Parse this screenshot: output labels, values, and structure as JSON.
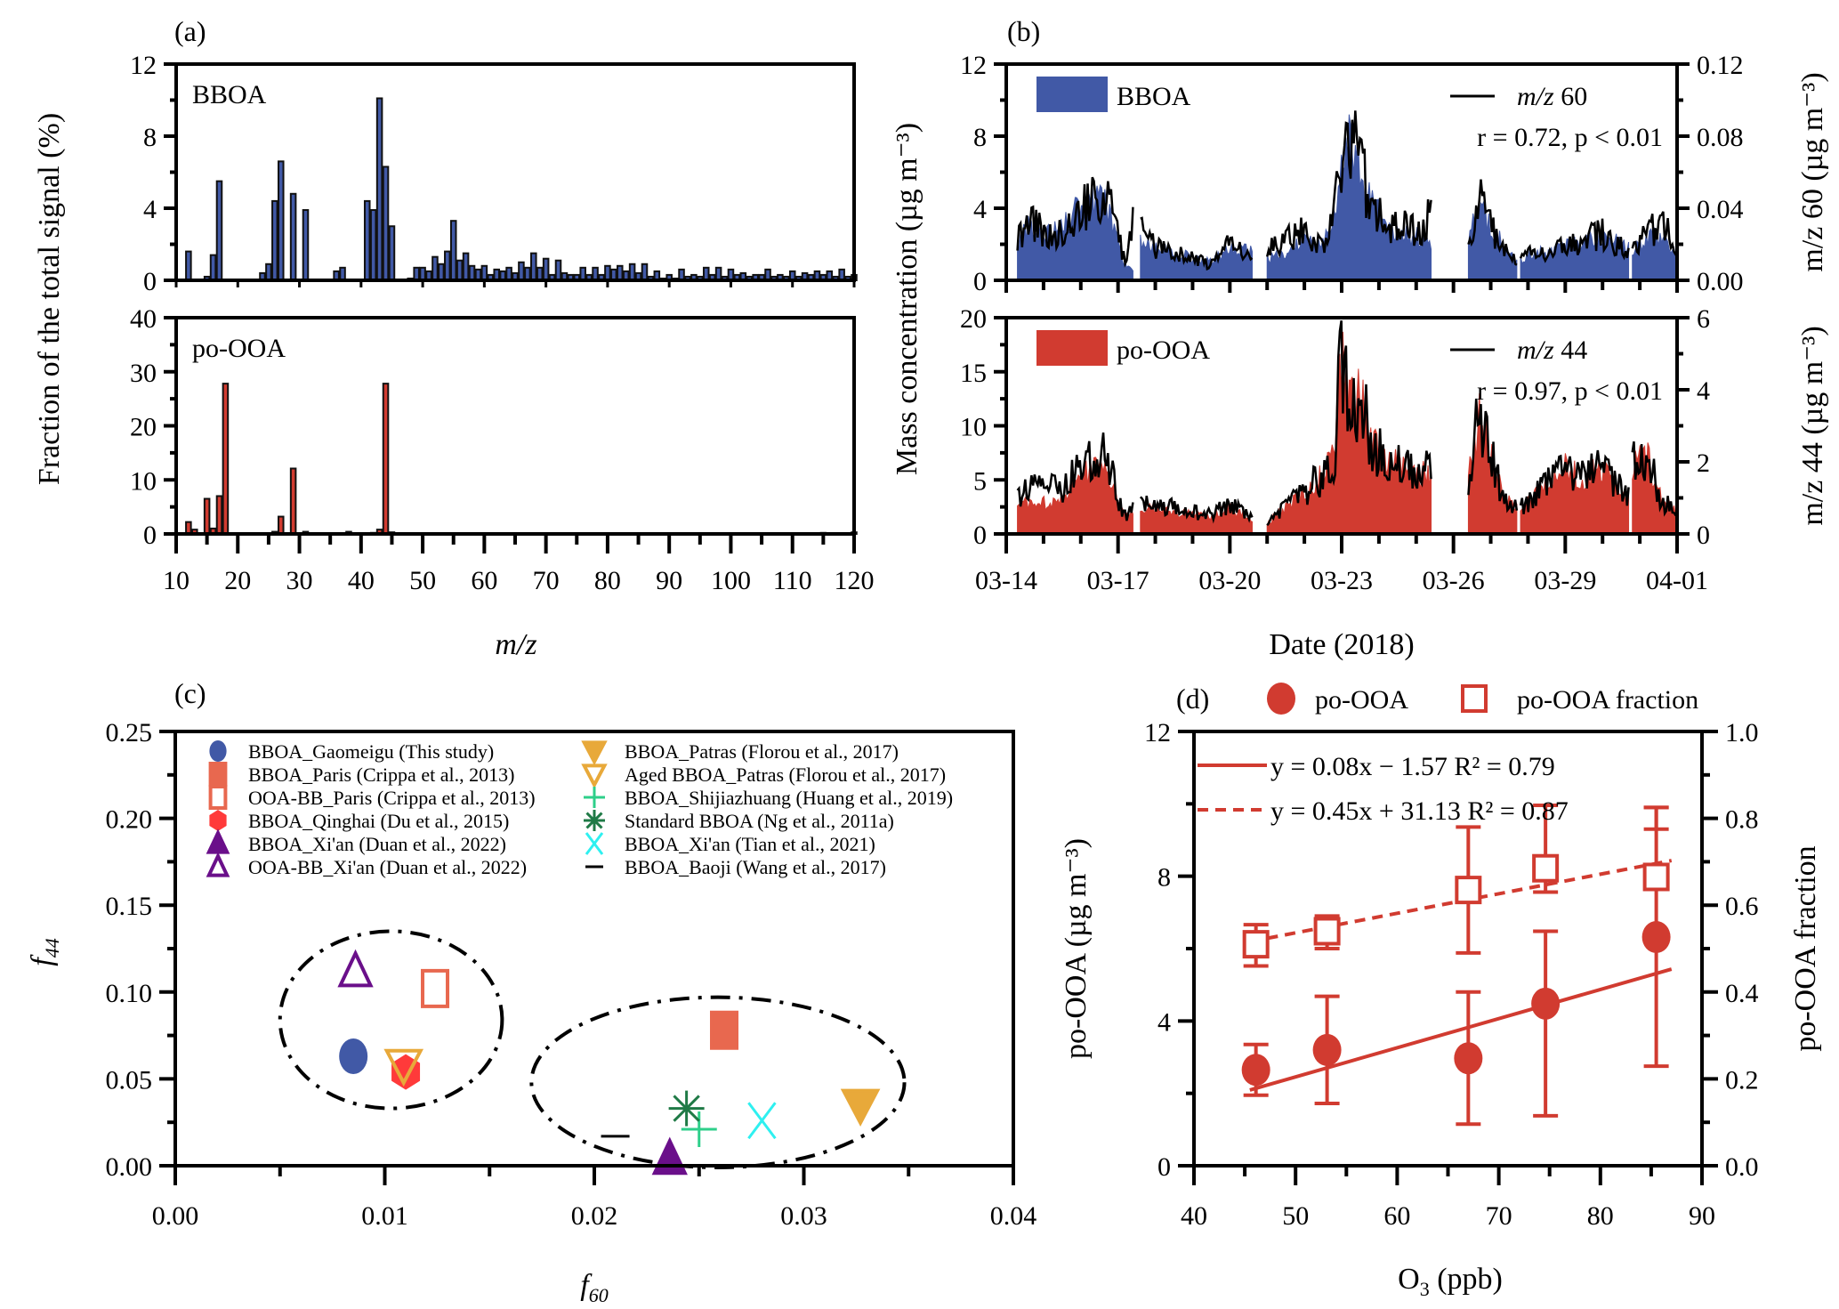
{
  "chart_data": [
    {
      "id": "a",
      "panel_label": "(a)",
      "type": "bar",
      "ylabel": "Fraction of the total signal (%)",
      "xlabel": "m/z",
      "xlim": [
        10,
        120
      ],
      "xticks": [
        10,
        20,
        30,
        40,
        50,
        60,
        70,
        80,
        90,
        100,
        110,
        120
      ],
      "subplots": [
        {
          "name": "BBOA",
          "color": "#4159a6",
          "ylim": [
            0,
            12
          ],
          "yticks": [
            0,
            4,
            8,
            12
          ],
          "mz": [
            12,
            13,
            14,
            15,
            16,
            17,
            18,
            19,
            20,
            24,
            25,
            26,
            27,
            28,
            29,
            30,
            31,
            36,
            37,
            38,
            39,
            41,
            42,
            43,
            44,
            45,
            46,
            47,
            48,
            49,
            50,
            51,
            52,
            53,
            54,
            55,
            56,
            57,
            58,
            59,
            60,
            61,
            62,
            63,
            64,
            65,
            66,
            67,
            68,
            69,
            70,
            71,
            72,
            73,
            74,
            75,
            76,
            77,
            78,
            79,
            80,
            81,
            82,
            83,
            84,
            85,
            86,
            87,
            88,
            89,
            90,
            91,
            92,
            93,
            94,
            95,
            96,
            97,
            98,
            99,
            100,
            101,
            102,
            103,
            104,
            105,
            106,
            107,
            108,
            109,
            110,
            111,
            112,
            113,
            114,
            115,
            116,
            117,
            118,
            119,
            120
          ],
          "values": [
            1.6,
            0,
            0,
            0.2,
            1.4,
            5.5,
            0,
            0,
            0,
            0.4,
            0.9,
            4.4,
            6.6,
            0,
            4.8,
            0,
            3.9,
            0.5,
            0.7,
            0,
            0,
            4.4,
            3.9,
            10.1,
            6.3,
            3.0,
            0,
            0.05,
            0.1,
            0.7,
            0.7,
            0.5,
            1.3,
            0.9,
            1.6,
            3.3,
            1.1,
            1.5,
            0.8,
            0.6,
            0.8,
            0.3,
            0.6,
            0.5,
            0.7,
            0.4,
            1.0,
            0.7,
            1.5,
            0.7,
            1.2,
            0.3,
            1.1,
            0.4,
            0.3,
            0.3,
            0.7,
            0.3,
            0.7,
            0.3,
            0.8,
            0.6,
            0.8,
            0.5,
            0.9,
            0.4,
            0.9,
            0.2,
            0.5,
            0.1,
            0.3,
            0.1,
            0.6,
            0.2,
            0.3,
            0.2,
            0.7,
            0.3,
            0.7,
            0.2,
            0.6,
            0.3,
            0.4,
            0.2,
            0.3,
            0.3,
            0.6,
            0.2,
            0.3,
            0.2,
            0.5,
            0.2,
            0.4,
            0.3,
            0.5,
            0.3,
            0.5,
            0.2,
            0.6,
            0.2,
            0.3
          ]
        },
        {
          "name": "po-OOA",
          "color": "#d13b30",
          "ylim": [
            0,
            40
          ],
          "yticks": [
            0,
            10,
            20,
            30,
            40
          ],
          "mz": [
            12,
            13,
            14,
            15,
            16,
            17,
            18,
            26,
            27,
            28,
            29,
            30,
            31,
            37,
            38,
            41,
            42,
            43,
            44,
            45,
            50,
            104,
            115,
            120
          ],
          "values": [
            2.2,
            0.8,
            0,
            6.5,
            1.0,
            7.0,
            27.8,
            0.4,
            3.2,
            0.1,
            12.1,
            0.1,
            0.4,
            0.1,
            0.4,
            0.1,
            0.2,
            0.8,
            27.8,
            0.3,
            0.1,
            0.1,
            0.2,
            0.3
          ]
        }
      ]
    },
    {
      "id": "b",
      "panel_label": "(b)",
      "type": "area",
      "ylabel": "Mass concentration (µg m⁻³)",
      "xlabel": "Date (2018)",
      "xlim_days": [
        0,
        18
      ],
      "xtick_labels": [
        "03-14",
        "03-17",
        "03-20",
        "03-23",
        "03-26",
        "03-29",
        "04-01"
      ],
      "xtick_days": [
        0,
        3,
        6,
        9,
        12,
        15,
        18
      ],
      "segments_days": [
        [
          0.3,
          3.4
        ],
        [
          3.6,
          6.6
        ],
        [
          7.0,
          11.4
        ],
        [
          12.4,
          13.7
        ],
        [
          13.8,
          16.7
        ],
        [
          16.8,
          18.0
        ]
      ],
      "subplots": [
        {
          "name": "BBOA",
          "area_color": "#4159a6",
          "line_label": "m/z 60",
          "annotation": "r = 0.72, p < 0.01",
          "ylim_left": [
            0,
            12
          ],
          "yticks_left": [
            0,
            4,
            8,
            12
          ],
          "ylim_right": [
            0,
            0.12
          ],
          "yticks_right": [
            "0.00",
            "0.04",
            "0.08",
            "0.12"
          ],
          "right_label": "m/z 60 (µg m⁻³)",
          "profile_days": [
            0.3,
            0.6,
            1.0,
            1.5,
            2.0,
            2.4,
            2.8,
            3.0,
            3.2,
            3.4,
            3.6,
            4.0,
            4.5,
            5.0,
            5.5,
            6.0,
            6.6,
            7.0,
            7.5,
            8.0,
            8.5,
            8.8,
            9.0,
            9.2,
            9.5,
            9.8,
            10.2,
            10.6,
            11.0,
            11.4,
            12.4,
            12.7,
            13.0,
            13.3,
            13.7,
            13.8,
            14.2,
            14.6,
            15.0,
            15.5,
            16.0,
            16.7,
            16.8,
            17.2,
            17.6,
            18.0
          ],
          "area_values": [
            2.0,
            3.0,
            2.6,
            2.8,
            4.2,
            4.6,
            3.8,
            2.2,
            0.8,
            0.6,
            2.2,
            1.8,
            1.6,
            1.2,
            1.0,
            1.8,
            1.6,
            1.2,
            1.4,
            2.2,
            2.0,
            3.5,
            7.8,
            8.2,
            6.0,
            4.5,
            2.6,
            2.4,
            2.5,
            2.0,
            2.2,
            4.2,
            3.0,
            2.0,
            1.0,
            1.2,
            1.6,
            1.4,
            2.0,
            2.2,
            2.4,
            1.8,
            1.6,
            2.2,
            2.6,
            1.4
          ],
          "line_values": [
            2.2,
            3.2,
            2.8,
            2.6,
            3.9,
            4.6,
            4.2,
            2.6,
            1.0,
            3.2,
            2.8,
            1.8,
            1.5,
            1.2,
            0.9,
            2.0,
            1.4,
            1.8,
            2.2,
            2.8,
            1.6,
            3.6,
            7.4,
            8.0,
            6.2,
            4.2,
            2.8,
            3.0,
            2.6,
            3.6,
            2.0,
            4.5,
            3.2,
            1.8,
            1.0,
            1.4,
            1.4,
            1.6,
            1.8,
            2.2,
            2.6,
            1.6,
            1.8,
            2.4,
            3.4,
            1.2
          ]
        },
        {
          "name": "po-OOA",
          "area_color": "#d13b30",
          "line_label": "m/z 44",
          "annotation": "r = 0.97, p < 0.01",
          "ylim_left": [
            0,
            20
          ],
          "yticks_left": [
            0,
            5,
            10,
            15,
            20
          ],
          "ylim_right": [
            0,
            6
          ],
          "yticks_right": [
            "0",
            "2",
            "4",
            "6"
          ],
          "right_label": "m/z 44 (µg m⁻³)",
          "profile_days": [
            0.3,
            0.6,
            1.0,
            1.5,
            2.0,
            2.4,
            2.8,
            3.0,
            3.2,
            3.4,
            3.6,
            4.0,
            4.5,
            5.0,
            5.5,
            6.0,
            6.6,
            7.0,
            7.5,
            8.0,
            8.5,
            8.8,
            9.0,
            9.2,
            9.5,
            9.8,
            10.2,
            10.6,
            11.0,
            11.4,
            12.4,
            12.7,
            13.0,
            13.3,
            13.7,
            13.8,
            14.2,
            14.6,
            15.0,
            15.5,
            16.0,
            16.7,
            16.8,
            17.2,
            17.6,
            18.0
          ],
          "area_values": [
            2.5,
            3.0,
            2.8,
            3.0,
            5.0,
            6.0,
            5.2,
            2.5,
            1.5,
            2.0,
            2.5,
            2.2,
            2.0,
            1.8,
            1.6,
            2.4,
            1.2,
            1.0,
            2.5,
            4.0,
            5.5,
            7.0,
            16.8,
            12.0,
            12.5,
            9.0,
            6.0,
            6.5,
            5.0,
            6.0,
            5.0,
            11.0,
            8.0,
            3.5,
            2.5,
            2.5,
            3.5,
            5.0,
            6.0,
            5.0,
            6.0,
            3.5,
            6.5,
            7.0,
            3.0,
            2.0
          ],
          "line_values": [
            3.7,
            4.2,
            4.0,
            4.3,
            6.3,
            7.4,
            6.6,
            3.2,
            1.6,
            2.5,
            2.8,
            2.6,
            2.4,
            2.0,
            1.8,
            2.8,
            1.4,
            1.0,
            2.5,
            3.8,
            5.5,
            7.2,
            16.5,
            12.2,
            12.8,
            9.0,
            6.0,
            6.4,
            5.2,
            6.2,
            5.0,
            11.2,
            8.0,
            3.4,
            2.6,
            2.4,
            3.6,
            5.0,
            5.6,
            5.2,
            6.2,
            3.4,
            6.8,
            7.4,
            3.0,
            2.0
          ]
        }
      ]
    },
    {
      "id": "c",
      "panel_label": "(c)",
      "type": "scatter",
      "xlabel": "f60",
      "ylabel": "f44",
      "xlim": [
        0,
        0.04
      ],
      "ylim": [
        0,
        0.25
      ],
      "xticks": [
        "0.00",
        "0.01",
        "0.02",
        "0.03",
        "0.04"
      ],
      "yticks": [
        "0.00",
        "0.05",
        "0.10",
        "0.15",
        "0.20",
        "0.25"
      ],
      "points": [
        {
          "label": "BBOA_Gaomeigu (This study)",
          "marker": "circle",
          "filled": true,
          "color": "#4159a6",
          "x": 0.0085,
          "y": 0.063
        },
        {
          "label": "BBOA_Paris (Crippa et al., 2013)",
          "marker": "square",
          "filled": true,
          "color": "#e8684f",
          "x": 0.0262,
          "y": 0.078
        },
        {
          "label": "OOA-BB_Paris (Crippa et al., 2013)",
          "marker": "square",
          "filled": false,
          "color": "#e8684f",
          "x": 0.0124,
          "y": 0.102
        },
        {
          "label": "BBOA_Qinghai (Du et al., 2015)",
          "marker": "hexagon",
          "filled": true,
          "color": "#ff3a3a",
          "x": 0.011,
          "y": 0.054
        },
        {
          "label": "BBOA_Xi'an (Duan et al., 2022)",
          "marker": "triangle-up",
          "filled": true,
          "color": "#6a0f8a",
          "x": 0.0236,
          "y": 0.004
        },
        {
          "label": "OOA-BB_Xi'an (Duan et al., 2022)",
          "marker": "triangle-up",
          "filled": false,
          "color": "#6a0f8a",
          "x": 0.0086,
          "y": 0.112
        },
        {
          "label": "BBOA_Patras (Florou et al., 2017)",
          "marker": "triangle-down",
          "filled": true,
          "color": "#e8a93a",
          "x": 0.0327,
          "y": 0.035
        },
        {
          "label": "Aged BBOA_Patras (Florou et al., 2017)",
          "marker": "triangle-down",
          "filled": false,
          "color": "#e8a93a",
          "x": 0.0109,
          "y": 0.058
        },
        {
          "label": "BBOA_Shijiazhuang (Huang et al., 2019)",
          "marker": "plus",
          "filled": false,
          "color": "#2ecf8a",
          "x": 0.025,
          "y": 0.021
        },
        {
          "label": "Standard BBOA (Ng et al., 2011a)",
          "marker": "asterisk",
          "filled": false,
          "color": "#1f7a46",
          "x": 0.0244,
          "y": 0.033
        },
        {
          "label": "BBOA_Xi'an (Tian et al., 2021)",
          "marker": "x",
          "filled": false,
          "color": "#2ef0f0",
          "x": 0.028,
          "y": 0.026
        },
        {
          "label": "BBOA_Baoji (Wang et al., 2017)",
          "marker": "dash",
          "filled": false,
          "color": "#000000",
          "x": 0.021,
          "y": 0.017
        }
      ],
      "ellipses": [
        {
          "cx": 0.0103,
          "cy": 0.084,
          "rx": 0.0053,
          "ry": 0.051
        },
        {
          "cx": 0.0259,
          "cy": 0.048,
          "rx": 0.0089,
          "ry": 0.049
        }
      ],
      "legend_placement": "top"
    },
    {
      "id": "d",
      "panel_label": "(d)",
      "type": "scatter",
      "xlabel": "O3 (ppb)",
      "ylabel_left": "po-OOA (µg m⁻³)",
      "ylabel_right": "po-OOA fraction",
      "xlim": [
        40,
        90
      ],
      "xticks": [
        40,
        50,
        60,
        70,
        80,
        90
      ],
      "ylim_left": [
        0,
        12
      ],
      "yticks_left": [
        0,
        4,
        8,
        12
      ],
      "ylim_right": [
        0,
        1.0
      ],
      "yticks_right": [
        "0.0",
        "0.2",
        "0.4",
        "0.6",
        "0.8",
        "1.0"
      ],
      "color": "#d13b30",
      "legend": [
        "po-OOA",
        "po-OOA fraction"
      ],
      "series": [
        {
          "name": "po-OOA",
          "axis": "left",
          "marker": "circle",
          "x": [
            46.1,
            53.1,
            67.0,
            74.6,
            85.5
          ],
          "y": [
            2.65,
            3.2,
            2.97,
            4.48,
            6.32
          ],
          "err_low": [
            1.95,
            1.72,
            1.15,
            1.38,
            2.75
          ],
          "err_high": [
            3.35,
            4.68,
            4.8,
            6.48,
            9.9
          ]
        },
        {
          "name": "po-OOA fraction",
          "axis": "right",
          "marker": "square-open",
          "x": [
            46.1,
            53.1,
            67.0,
            74.6,
            85.5
          ],
          "y": [
            0.51,
            0.54,
            0.635,
            0.685,
            0.665
          ],
          "err_low": [
            0.46,
            0.5,
            0.49,
            0.63,
            0.775
          ],
          "err_high": [
            0.555,
            0.575,
            0.78,
            0.83,
            0.825
          ]
        }
      ],
      "fits": [
        {
          "label": "y = 0.08x − 1.57 R² = 0.79",
          "axis": "left",
          "style": "solid",
          "x_range": [
            45.5,
            87
          ],
          "slope": 0.0805,
          "intercept": -1.57,
          "r2": 0.79
        },
        {
          "label": "y = 0.45x + 31.13 R² = 0.87",
          "axis": "right",
          "style": "dashed",
          "x_range": [
            45.5,
            87
          ],
          "slope": 0.0045,
          "intercept": 0.3113,
          "r2": 0.87
        }
      ]
    }
  ]
}
